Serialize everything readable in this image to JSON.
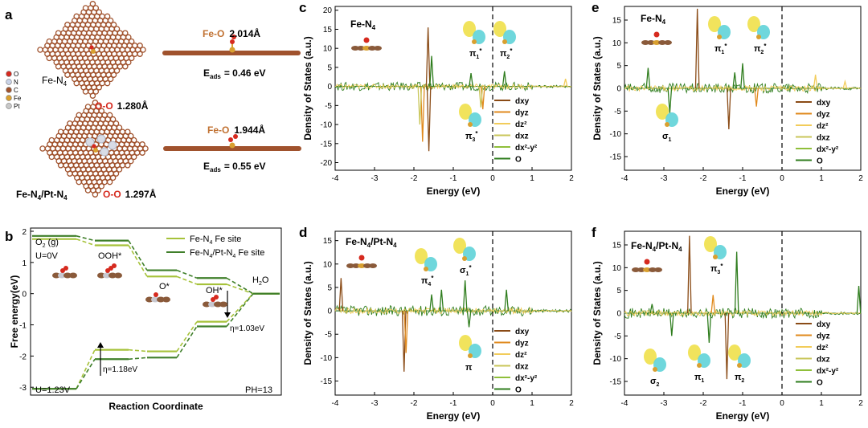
{
  "panels": {
    "a": {
      "letter": "a",
      "legend": [
        {
          "symbol": "O",
          "color": "#d62a1f"
        },
        {
          "symbol": "N",
          "color": "#c9d3e8"
        },
        {
          "symbol": "C",
          "color": "#a0522d"
        },
        {
          "symbol": "Fe",
          "color": "#d9a030"
        },
        {
          "symbol": "Pt",
          "color": "#c8c8c8"
        }
      ],
      "top": {
        "label": "Fe-N",
        "label_sub": "4",
        "feo_label": "Fe-O",
        "feo_value": "2.014Å",
        "oo_label": "O-O",
        "oo_value": "1.280Å",
        "eads_label": "E",
        "eads_sub": "ads",
        "eads_value": "= 0.46 eV"
      },
      "bottom": {
        "label": "Fe-N",
        "label_sub": "4",
        "label_rest": "/Pt-N",
        "label_sub2": "4",
        "feo_label": "Fe-O",
        "feo_value": "1.944Å",
        "oo_label": "O-O",
        "oo_value": "1.297Å",
        "eads_label": "E",
        "eads_sub": "ads",
        "eads_value": "= 0.55 eV"
      }
    },
    "b": {
      "letter": "b",
      "ylabel": "Free energy(eV)",
      "xlabel": "Reaction Coordinate",
      "ph": "PH=13",
      "o2": "O",
      "o2_sub": "2",
      "o2_rest": " (g)",
      "u0": "U=0V",
      "ooh": "OOH*",
      "o_star": "O*",
      "oh_star": "OH*",
      "h2o": "H",
      "h2o_sub": "2",
      "h2o_rest": "O",
      "eta1": "η=1.03eV",
      "eta2": "η=1.18eV",
      "u123": "U=1.23V",
      "legend1": "Fe-N",
      "legend1_sub": "4",
      "legend1_rest": " Fe site",
      "legend2": "Fe-N",
      "legend2_sub": "4",
      "legend2_rest": "/Pt-N",
      "legend2_sub2": "4",
      "legend2_rest2": " Fe site",
      "colors": {
        "fen4": "#a6c23a",
        "fept": "#3f7f2a"
      }
    },
    "c": {
      "letter": "c"
    },
    "d": {
      "letter": "d"
    },
    "e": {
      "letter": "e"
    },
    "f": {
      "letter": "f"
    }
  },
  "orbital_labels": {
    "pi1": "π",
    "pi1_sub": "1",
    "pi2": "π",
    "pi2_sub": "2",
    "pi3": "π",
    "pi3_sub": "3",
    "pi4": "π",
    "pi4_sub": "4",
    "sigma1": "σ",
    "sigma1_sub": "1",
    "sigma2": "σ",
    "sigma2_sub": "2",
    "pi": "π",
    "star": "*"
  },
  "chart_data": [
    {
      "panel": "b",
      "type": "line",
      "ylabel": "Free energy(eV)",
      "xlabel": "Reaction Coordinate",
      "ylim": [
        -3.2,
        2
      ],
      "y_ticks": [
        -3,
        -2,
        -1,
        0,
        1,
        2
      ],
      "x": [
        "O2 (g)",
        "OOH*",
        "O*",
        "OH*",
        "H2O"
      ],
      "series": [
        {
          "name": "Fe-N4 Fe site",
          "condition": "U=0V",
          "values": [
            1.75,
            1.55,
            0.55,
            0.3,
            0.0
          ]
        },
        {
          "name": "Fe-N4/Pt-N4 Fe site",
          "condition": "U=0V",
          "values": [
            1.85,
            1.7,
            0.75,
            0.5,
            0.0
          ]
        },
        {
          "name": "Fe-N4 Fe site",
          "condition": "U=1.23V",
          "values": [
            -3.05,
            -1.8,
            -1.85,
            -0.9,
            0.0
          ]
        },
        {
          "name": "Fe-N4/Pt-N4 Fe site",
          "condition": "U=1.23V",
          "values": [
            -3.05,
            -2.1,
            -2.05,
            -1.05,
            0.0
          ]
        }
      ]
    },
    {
      "panel": "c",
      "type": "line",
      "title": "Fe-N4",
      "xlabel": "Energy (eV)",
      "ylabel": "Density of States (a.u.)",
      "xlim": [
        -4,
        2
      ],
      "ylim": [
        -22,
        21
      ],
      "x_ticks": [
        -4,
        -3,
        -2,
        -1,
        0,
        1,
        2
      ],
      "y_ticks": [
        -20,
        -15,
        -10,
        -5,
        0,
        5,
        10,
        15,
        20
      ],
      "legend": [
        "dxy",
        "dyz",
        "dz2",
        "dxz",
        "dx2-y2",
        "O"
      ],
      "peaks": [
        {
          "series": "dxy",
          "x": -1.64,
          "y": 15.5
        },
        {
          "series": "dxy",
          "x": -1.62,
          "y": -17.0
        },
        {
          "series": "dyz",
          "x": -1.78,
          "y": -14.5
        },
        {
          "series": "dxz",
          "x": -1.85,
          "y": -10.0
        },
        {
          "series": "O",
          "x": -1.55,
          "y": 8.0
        },
        {
          "series": "O",
          "x": -0.55,
          "y": 3.5
        },
        {
          "series": "O",
          "x": 0.3,
          "y": 4.0
        },
        {
          "series": "dyz",
          "x": -0.25,
          "y": -6.0
        },
        {
          "series": "dxz",
          "x": -0.3,
          "y": -5.5
        },
        {
          "series": "dz2",
          "x": 1.85,
          "y": 2.0
        }
      ]
    },
    {
      "panel": "d",
      "type": "line",
      "title": "Fe-N4/Pt-N4",
      "xlabel": "Energy (eV)",
      "ylabel": "Density of States (a.u.)",
      "xlim": [
        -4,
        2
      ],
      "ylim": [
        -18,
        17
      ],
      "x_ticks": [
        -4,
        -3,
        -2,
        -1,
        0,
        1,
        2
      ],
      "y_ticks": [
        -15,
        -10,
        -5,
        0,
        5,
        10,
        15
      ],
      "legend": [
        "dxy",
        "dyz",
        "dz2",
        "dxz",
        "dx2-y2",
        "O"
      ],
      "peaks": [
        {
          "series": "dxy",
          "x": -3.85,
          "y": 7.0
        },
        {
          "series": "dxy",
          "x": -2.25,
          "y": -13.0
        },
        {
          "series": "dyz",
          "x": -2.2,
          "y": -9.0
        },
        {
          "series": "O",
          "x": -1.55,
          "y": 3.5
        },
        {
          "series": "O",
          "x": -1.3,
          "y": 4.5
        },
        {
          "series": "O",
          "x": -0.7,
          "y": 6.5
        },
        {
          "series": "O",
          "x": 0.35,
          "y": 4.5
        },
        {
          "series": "O",
          "x": -0.6,
          "y": -3.5
        }
      ]
    },
    {
      "panel": "e",
      "type": "line",
      "title": "Fe-N4",
      "xlabel": "Energy (eV)",
      "ylabel": "Density of States (a.u.)",
      "xlim": [
        -4,
        2
      ],
      "ylim": [
        -18,
        18
      ],
      "x_ticks": [
        -4,
        -3,
        -2,
        -1,
        0,
        1,
        2
      ],
      "y_ticks": [
        -15,
        -10,
        -5,
        0,
        5,
        10,
        15
      ],
      "legend": [
        "dxy",
        "dyz",
        "dz2",
        "dxz",
        "dx2-y2",
        "O"
      ],
      "peaks": [
        {
          "series": "dxy",
          "x": -2.15,
          "y": 17.5
        },
        {
          "series": "dxy",
          "x": -1.35,
          "y": -9.0
        },
        {
          "series": "dyz",
          "x": -0.65,
          "y": -4.0
        },
        {
          "series": "O",
          "x": -3.4,
          "y": 4.5
        },
        {
          "series": "O",
          "x": -2.85,
          "y": -5.5
        },
        {
          "series": "O",
          "x": -1.0,
          "y": 5.5
        },
        {
          "series": "O",
          "x": -1.2,
          "y": 3.5
        },
        {
          "series": "dz2",
          "x": 0.85,
          "y": 3.0
        },
        {
          "series": "dz2",
          "x": 1.6,
          "y": 1.5
        }
      ]
    },
    {
      "panel": "f",
      "type": "line",
      "title": "Fe-N4/Pt-N4",
      "xlabel": "Energy (eV)",
      "ylabel": "Density of States (a.u.)",
      "xlim": [
        -4,
        2
      ],
      "ylim": [
        -18,
        18
      ],
      "x_ticks": [
        -4,
        -3,
        -2,
        -1,
        0,
        1,
        2
      ],
      "y_ticks": [
        -15,
        -10,
        -5,
        0,
        5,
        10,
        15
      ],
      "legend": [
        "dxy",
        "dyz",
        "dz2",
        "dxz",
        "dx2-y2",
        "O"
      ],
      "peaks": [
        {
          "series": "dxy",
          "x": -2.35,
          "y": 17.0
        },
        {
          "series": "dxy",
          "x": -1.4,
          "y": -14.5
        },
        {
          "series": "dyz",
          "x": -1.75,
          "y": 4.0
        },
        {
          "series": "O",
          "x": -1.15,
          "y": 13.5
        },
        {
          "series": "O",
          "x": -2.8,
          "y": -5.0
        },
        {
          "series": "O",
          "x": -1.85,
          "y": -6.5
        },
        {
          "series": "O",
          "x": -3.3,
          "y": 2.0
        },
        {
          "series": "O",
          "x": 1.95,
          "y": 6.0
        }
      ]
    }
  ],
  "dos_legend": [
    {
      "name": "dxy",
      "color": "#8a4b16"
    },
    {
      "name": "dyz",
      "color": "#e08a1e"
    },
    {
      "name": "dz2",
      "color": "#f2cc5a"
    },
    {
      "name": "dxz",
      "color": "#c9c65a"
    },
    {
      "name": "dx2-y2",
      "color": "#8fbf3a"
    },
    {
      "name": "O",
      "color": "#2f7d1e"
    }
  ]
}
